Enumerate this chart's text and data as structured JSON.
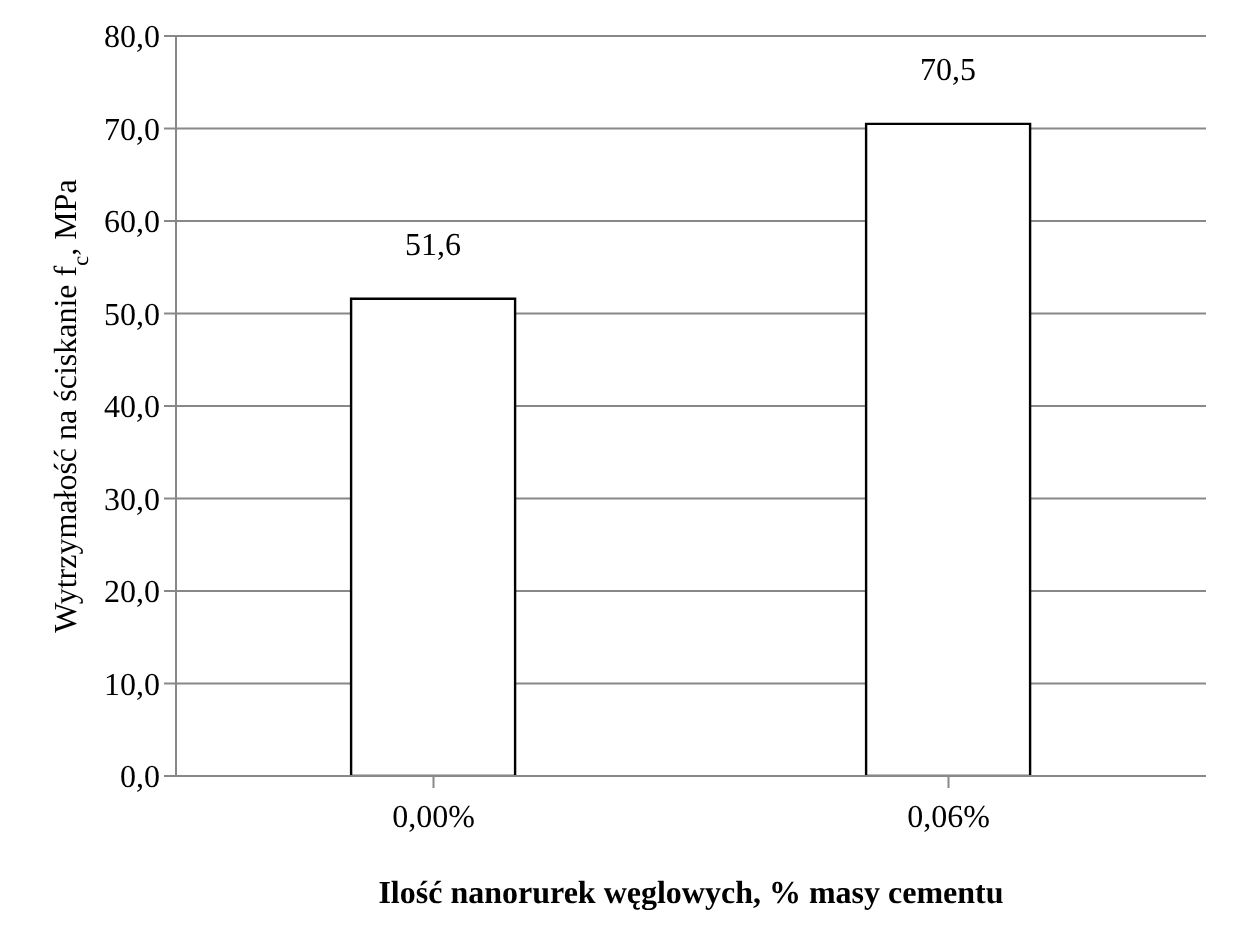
{
  "chart_data": {
    "type": "bar",
    "xlabel": "Ilość nanorurek węglowych, % masy cementu",
    "ylabel": "Wytrzymałość na ściskanie f$_{c}$, MPa",
    "categories": [
      "0,00%",
      "0,06%"
    ],
    "series": [
      {
        "color": "#ffffff",
        "values": [
          51.6,
          70.5
        ],
        "value_labels": [
          "51,6",
          "70,5"
        ]
      }
    ],
    "ylim": [
      0,
      80
    ],
    "yticks": [
      {
        "value": 0,
        "label": "0,0"
      },
      {
        "value": 10,
        "label": "10,0"
      },
      {
        "value": 20,
        "label": "20,0"
      },
      {
        "value": 30,
        "label": "30,0"
      },
      {
        "value": 40,
        "label": "40,0"
      },
      {
        "value": 50,
        "label": "50,0"
      },
      {
        "value": 60,
        "label": "60,0"
      },
      {
        "value": 70,
        "label": "70,0"
      },
      {
        "value": 80,
        "label": "80,0"
      }
    ],
    "grid": "y",
    "legend": false
  }
}
